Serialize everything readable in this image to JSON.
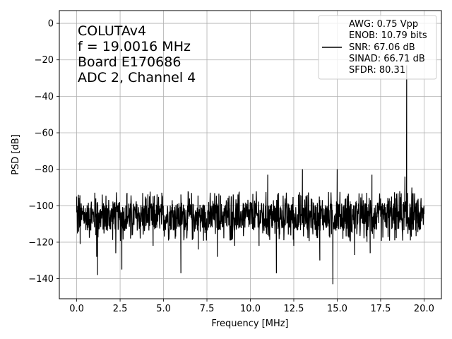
{
  "chart_data": {
    "type": "line",
    "xlabel": "Frequency [MHz]",
    "ylabel": "PSD [dB]",
    "xlim": [
      -1.0,
      21.0
    ],
    "ylim": [
      -151,
      7
    ],
    "xticks": [
      0.0,
      2.5,
      5.0,
      7.5,
      10.0,
      12.5,
      15.0,
      17.5,
      20.0
    ],
    "xtick_labels": [
      "0.0",
      "2.5",
      "5.0",
      "7.5",
      "10.0",
      "12.5",
      "15.0",
      "17.5",
      "20.0"
    ],
    "yticks": [
      0,
      -20,
      -40,
      -60,
      -80,
      -100,
      -120,
      -140
    ],
    "ytick_labels": [
      "0",
      "−20",
      "−40",
      "−60",
      "−80",
      "−100",
      "−120",
      "−140"
    ],
    "grid": true,
    "annotation_lines": [
      "COLUTAv4",
      "f = 19.0016 MHz",
      "Board E170686",
      "ADC 2, Channel 4"
    ],
    "legend_position": "top-right",
    "legend_lines": [
      "AWG: 0.75 Vpp",
      "ENOB: 10.79 bits",
      "SNR: 67.06 dB",
      "SINAD: 66.71 dB",
      "SFDR: 80.31"
    ],
    "line_color": "#000000",
    "series": [
      {
        "noise_floor_db": -106,
        "noise_range_db": [
          -122,
          -94
        ],
        "points": [
          [
            0.0,
            -95
          ],
          [
            0.1,
            -94
          ],
          [
            0.2,
            -121
          ],
          [
            0.4,
            -100
          ],
          [
            0.8,
            -101
          ],
          [
            1.1,
            -96
          ],
          [
            1.15,
            -128
          ],
          [
            1.2,
            -98
          ],
          [
            1.2,
            -138
          ],
          [
            1.6,
            -101
          ],
          [
            2.2,
            -98
          ],
          [
            2.25,
            -126
          ],
          [
            2.6,
            -135
          ],
          [
            2.9,
            -93
          ],
          [
            3.1,
            -118
          ],
          [
            3.8,
            -93
          ],
          [
            4.0,
            -96
          ],
          [
            4.4,
            -122
          ],
          [
            4.9,
            -95
          ],
          [
            5.5,
            -97
          ],
          [
            6.0,
            -137
          ],
          [
            6.5,
            -96
          ],
          [
            7.0,
            -124
          ],
          [
            7.6,
            -98
          ],
          [
            8.1,
            -128
          ],
          [
            8.7,
            -98
          ],
          [
            9.1,
            -122
          ],
          [
            9.8,
            -99
          ],
          [
            10.5,
            -122
          ],
          [
            11.0,
            -83
          ],
          [
            11.5,
            -137
          ],
          [
            12.0,
            -96
          ],
          [
            12.5,
            -122
          ],
          [
            13.0,
            -80
          ],
          [
            13.5,
            -96
          ],
          [
            14.0,
            -130
          ],
          [
            14.75,
            -143
          ],
          [
            15.0,
            -80
          ],
          [
            15.5,
            -96
          ],
          [
            16.0,
            -127
          ],
          [
            16.5,
            -97
          ],
          [
            16.9,
            -126
          ],
          [
            17.0,
            -83
          ],
          [
            17.5,
            -96
          ],
          [
            18.0,
            -96
          ],
          [
            18.6,
            -92
          ],
          [
            18.9,
            -84
          ],
          [
            19.0,
            -23
          ],
          [
            19.05,
            -93
          ],
          [
            19.3,
            -90
          ],
          [
            19.6,
            -97
          ],
          [
            20.0,
            -100
          ]
        ]
      }
    ]
  }
}
